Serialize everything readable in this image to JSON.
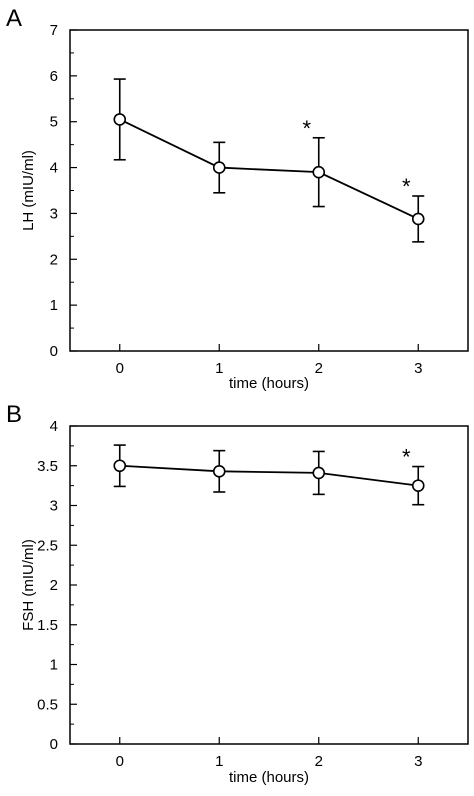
{
  "chart_data": [
    {
      "panel_label": "A",
      "type": "line",
      "xlabel": "time  (hours)",
      "ylabel": "LH  (mIU/ml)",
      "x": [
        0,
        1,
        2,
        3
      ],
      "xticks": [
        "0",
        "1",
        "2",
        "3"
      ],
      "ylim": [
        0,
        7
      ],
      "yticks": [
        "0",
        "1",
        "2",
        "3",
        "4",
        "5",
        "6",
        "7"
      ],
      "series": [
        {
          "values": [
            5.05,
            4.0,
            3.9,
            2.88
          ],
          "error": [
            0.88,
            0.55,
            0.75,
            0.5
          ],
          "significant": [
            false,
            false,
            true,
            true
          ]
        }
      ],
      "annotation_symbol": "*",
      "grid": false
    },
    {
      "panel_label": "B",
      "type": "line",
      "xlabel": "time  (hours)",
      "ylabel": "FSH  (mIU/ml)",
      "x": [
        0,
        1,
        2,
        3
      ],
      "xticks": [
        "0",
        "1",
        "2",
        "3"
      ],
      "ylim": [
        0,
        4
      ],
      "yticks": [
        "0",
        "0.5",
        "1",
        "1.5",
        "2",
        "2.5",
        "3",
        "3.5",
        "4"
      ],
      "series": [
        {
          "values": [
            3.5,
            3.43,
            3.41,
            3.25
          ],
          "error": [
            0.26,
            0.26,
            0.27,
            0.24
          ],
          "significant": [
            false,
            false,
            false,
            true
          ]
        }
      ],
      "annotation_symbol": "*",
      "grid": false
    }
  ]
}
